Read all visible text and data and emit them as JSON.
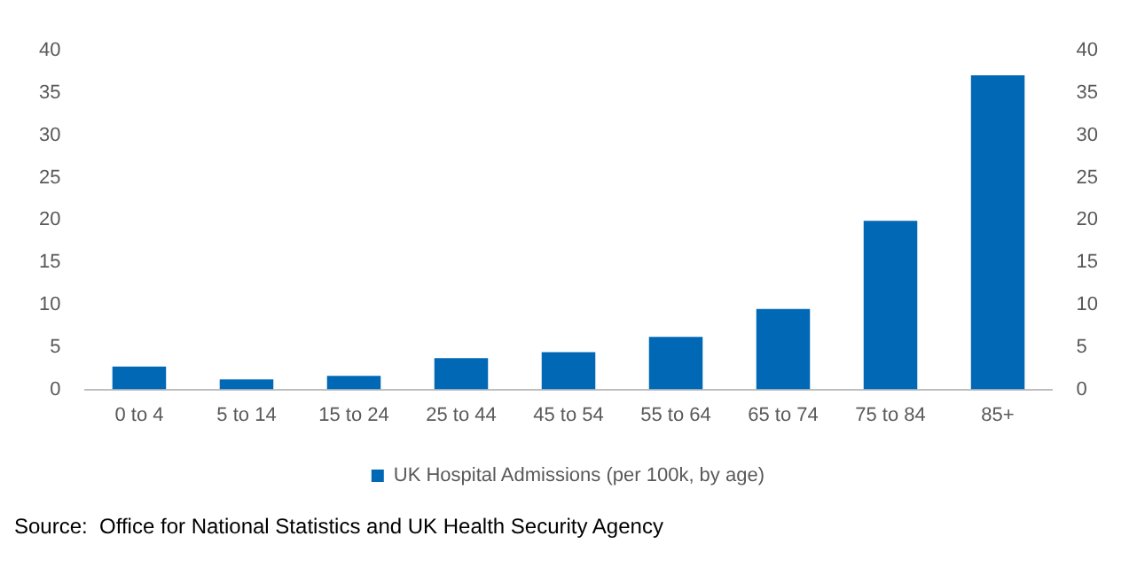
{
  "chart_data": {
    "type": "bar",
    "categories": [
      "0 to 4",
      "5 to 14",
      "15 to 24",
      "25 to 44",
      "45 to 54",
      "55 to 64",
      "65 to 74",
      "75 to 84",
      "85+"
    ],
    "series": [
      {
        "name": "UK Hospital Admissions (per 100k, by age)",
        "color": "#0068b5",
        "values": [
          2.7,
          1.2,
          1.6,
          3.7,
          4.4,
          6.2,
          9.5,
          19.9,
          37.1
        ]
      }
    ],
    "ylim": [
      0,
      40
    ],
    "yticks": [
      0,
      5,
      10,
      15,
      20,
      25,
      30,
      35,
      40
    ],
    "y2lim": [
      0,
      40
    ],
    "y2ticks": [
      0,
      5,
      10,
      15,
      20,
      25,
      30,
      35,
      40
    ],
    "grid": false,
    "legend": "bottom",
    "annotations": [
      "Source:  Office for National Statistics and UK Health Security Agency"
    ]
  }
}
